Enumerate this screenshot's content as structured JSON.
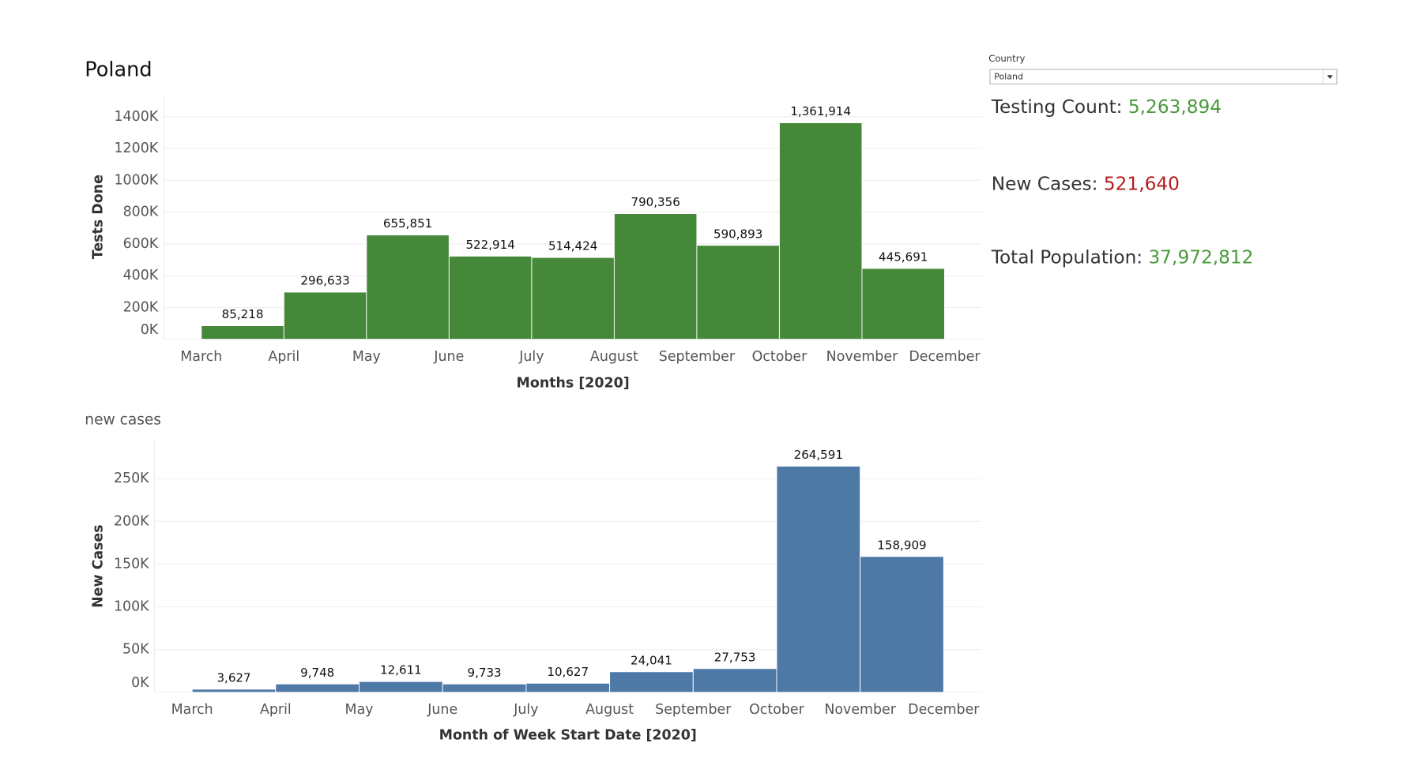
{
  "chart_data": [
    {
      "type": "histogram",
      "title": "Poland",
      "ylabel": "Tests Done",
      "xlabel": "Months [2020]",
      "color": "#46883a",
      "bins": [
        "March",
        "April",
        "May",
        "June",
        "July",
        "August",
        "September",
        "October",
        "November",
        "December"
      ],
      "values": [
        85218,
        296633,
        655851,
        522914,
        514424,
        790356,
        590893,
        1361914,
        445691
      ],
      "value_labels": [
        "85,218",
        "296,633",
        "655,851",
        "522,914",
        "514,424",
        "790,356",
        "590,893",
        "1,361,914",
        "445,691"
      ],
      "ylim": [
        0,
        1540000
      ],
      "yticks": [
        {
          "value": 0,
          "label": "0K"
        },
        {
          "value": 200000,
          "label": "200K"
        },
        {
          "value": 400000,
          "label": "400K"
        },
        {
          "value": 600000,
          "label": "600K"
        },
        {
          "value": 800000,
          "label": "800K"
        },
        {
          "value": 1000000,
          "label": "1000K"
        },
        {
          "value": 1200000,
          "label": "1200K"
        },
        {
          "value": 1400000,
          "label": "1400K"
        }
      ],
      "grid": true
    },
    {
      "type": "histogram",
      "title": "new cases",
      "ylabel": "New Cases",
      "xlabel": "Month of Week Start Date [2020]",
      "color": "#4e78a6",
      "bins": [
        "March",
        "April",
        "May",
        "June",
        "July",
        "August",
        "September",
        "October",
        "November",
        "December"
      ],
      "values": [
        3627,
        9748,
        12611,
        9733,
        10627,
        24041,
        27753,
        264591,
        158909
      ],
      "value_labels": [
        "3,627",
        "9,748",
        "12,611",
        "9,733",
        "10,627",
        "24,041",
        "27,753",
        "264,591",
        "158,909"
      ],
      "ylim": [
        0,
        295000
      ],
      "yticks": [
        {
          "value": 0,
          "label": "0K"
        },
        {
          "value": 50000,
          "label": "50K"
        },
        {
          "value": 100000,
          "label": "100K"
        },
        {
          "value": 150000,
          "label": "150K"
        },
        {
          "value": 200000,
          "label": "200K"
        },
        {
          "value": 250000,
          "label": "250K"
        }
      ],
      "grid": true
    }
  ],
  "filter": {
    "label": "Country",
    "value": "Poland"
  },
  "kpis": [
    {
      "label": "Testing Count:",
      "value": "5,263,894"
    },
    {
      "label": "New Cases:",
      "value": "521,640"
    },
    {
      "label": "Total Population:",
      "value": "37,972,812"
    }
  ]
}
